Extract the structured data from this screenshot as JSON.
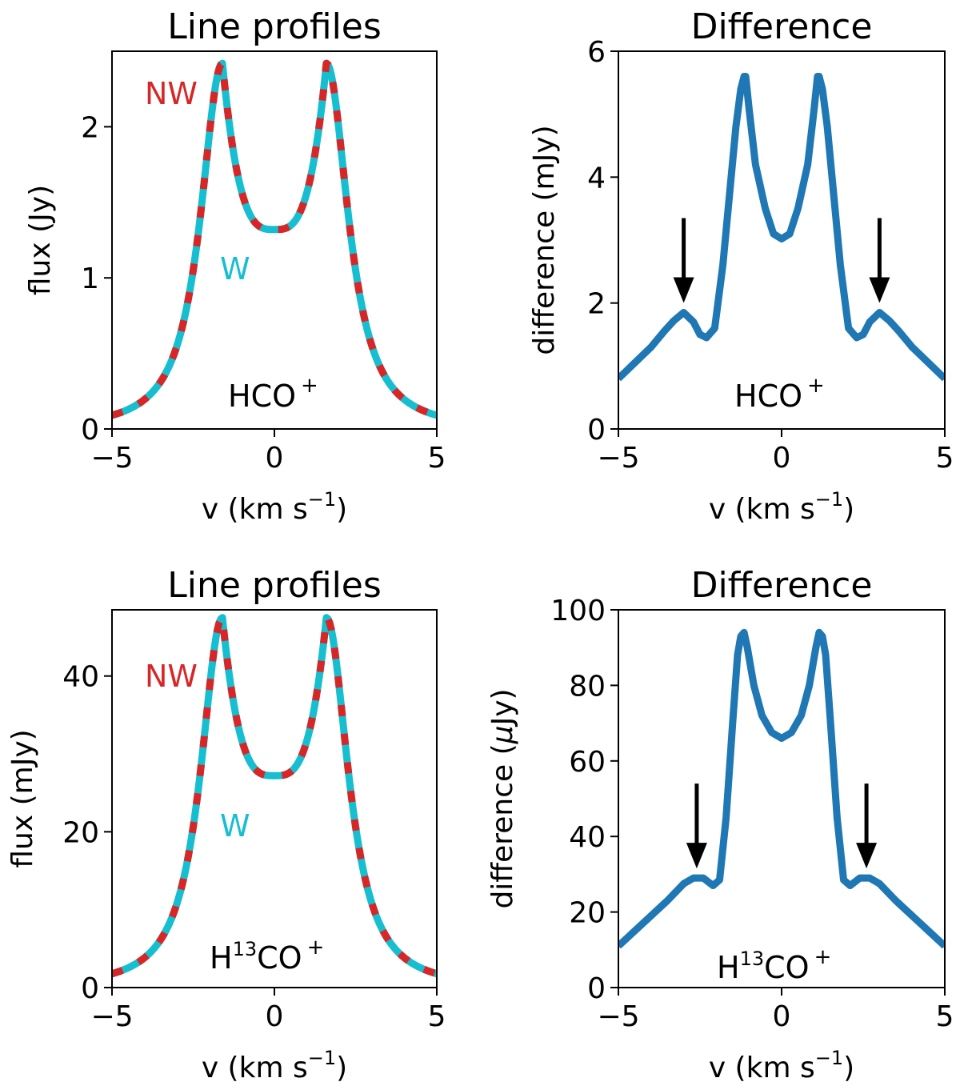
{
  "chart_data": [
    {
      "id": "p1",
      "type": "line",
      "title": "Line profiles",
      "xlabel": "v (km s",
      "xlabel_exp": "−1",
      "xlabel_tail": ")",
      "ylabel": "flux (Jy)",
      "xlim": [
        -5,
        5
      ],
      "ylim": [
        0,
        2.5
      ],
      "xticks": [
        -5,
        0,
        5
      ],
      "xtick_labels": [
        "−5",
        "0",
        "5"
      ],
      "yticks": [
        0,
        1,
        2
      ],
      "ytick_labels": [
        "0",
        "1",
        "2"
      ],
      "species": {
        "base": "HCO",
        "pre": "",
        "sup": "",
        "charge": "+"
      },
      "labels": {
        "nw": "NW",
        "w": "W"
      },
      "series": [
        {
          "name": "NW",
          "color": "#d62728",
          "style": "dashed",
          "peak": 2.42,
          "center": 1.32,
          "shape": "profile"
        },
        {
          "name": "W",
          "color": "#17becf",
          "style": "solid",
          "peak": 2.42,
          "center": 1.32,
          "shape": "profile"
        }
      ]
    },
    {
      "id": "p2",
      "type": "line",
      "title": "Difference",
      "xlabel": "v (km s",
      "xlabel_exp": "−1",
      "xlabel_tail": ")",
      "ylabel": "difference (mJy)",
      "ylabel_mu": false,
      "xlim": [
        -5,
        5
      ],
      "ylim": [
        0,
        6
      ],
      "xticks": [
        -5,
        0,
        5
      ],
      "xtick_labels": [
        "−5",
        "0",
        "5"
      ],
      "yticks": [
        0,
        2,
        4,
        6
      ],
      "ytick_labels": [
        "0",
        "2",
        "4",
        "6"
      ],
      "species": {
        "base": "HCO",
        "pre": "",
        "sup": "",
        "charge": "+"
      },
      "arrows_at_v": [
        -3.0,
        3.0
      ],
      "series": [
        {
          "name": "difference",
          "color": "#1f77b4",
          "style": "solid",
          "x": [
            -5,
            -4.5,
            -4,
            -3.6,
            -3.3,
            -3.0,
            -2.7,
            -2.5,
            -2.3,
            -2.05,
            -1.8,
            -1.6,
            -1.4,
            -1.25,
            -1.15,
            -1.1,
            -1.0,
            -0.8,
            -0.5,
            -0.25,
            0,
            0.25,
            0.5,
            0.8,
            1.0,
            1.1,
            1.15,
            1.25,
            1.4,
            1.6,
            1.8,
            2.05,
            2.3,
            2.5,
            2.7,
            3.0,
            3.3,
            3.6,
            4,
            4.5,
            5
          ],
          "y": [
            0.8,
            1.05,
            1.3,
            1.55,
            1.72,
            1.85,
            1.7,
            1.5,
            1.45,
            1.6,
            2.6,
            3.7,
            4.8,
            5.4,
            5.6,
            5.6,
            5.1,
            4.2,
            3.5,
            3.1,
            3.02,
            3.1,
            3.5,
            4.2,
            5.1,
            5.6,
            5.6,
            5.4,
            4.8,
            3.7,
            2.6,
            1.6,
            1.45,
            1.5,
            1.7,
            1.85,
            1.72,
            1.55,
            1.3,
            1.05,
            0.8
          ]
        }
      ]
    },
    {
      "id": "p3",
      "type": "line",
      "title": "Line profiles",
      "xlabel": "v (km s",
      "xlabel_exp": "−1",
      "xlabel_tail": ")",
      "ylabel": "flux (mJy)",
      "xlim": [
        -5,
        5
      ],
      "ylim": [
        0,
        48.5
      ],
      "xticks": [
        -5,
        0,
        5
      ],
      "xtick_labels": [
        "−5",
        "0",
        "5"
      ],
      "yticks": [
        0,
        20,
        40
      ],
      "ytick_labels": [
        "0",
        "20",
        "40"
      ],
      "species": {
        "base": "CO",
        "pre": "H",
        "sup": "13",
        "charge": "+"
      },
      "labels": {
        "nw": "NW",
        "w": "W"
      },
      "series": [
        {
          "name": "NW",
          "color": "#d62728",
          "style": "dashed",
          "peak": 47.5,
          "center": 27.2,
          "shape": "profile"
        },
        {
          "name": "W",
          "color": "#17becf",
          "style": "solid",
          "peak": 47.5,
          "center": 27.2,
          "shape": "profile"
        }
      ]
    },
    {
      "id": "p4",
      "type": "line",
      "title": "Difference",
      "xlabel": "v (km s",
      "xlabel_exp": "−1",
      "xlabel_tail": ")",
      "ylabel": "difference (",
      "ylabel_mu": true,
      "ylabel_tail": "Jy)",
      "xlim": [
        -5,
        5
      ],
      "ylim": [
        0,
        100
      ],
      "xticks": [
        -5,
        0,
        5
      ],
      "xtick_labels": [
        "−5",
        "0",
        "5"
      ],
      "yticks": [
        0,
        20,
        40,
        60,
        80,
        100
      ],
      "ytick_labels": [
        "0",
        "20",
        "40",
        "60",
        "80",
        "100"
      ],
      "species": {
        "base": "CO",
        "pre": "H",
        "sup": "13",
        "charge": "+"
      },
      "arrows_at_v": [
        -2.6,
        2.6
      ],
      "series": [
        {
          "name": "difference",
          "color": "#1f77b4",
          "style": "solid",
          "x": [
            -5,
            -4.5,
            -4,
            -3.5,
            -3.0,
            -2.7,
            -2.4,
            -2.1,
            -1.9,
            -1.7,
            -1.5,
            -1.35,
            -1.25,
            -1.15,
            -1.05,
            -0.85,
            -0.6,
            -0.3,
            0,
            0.3,
            0.6,
            0.85,
            1.05,
            1.15,
            1.25,
            1.35,
            1.5,
            1.7,
            1.9,
            2.1,
            2.4,
            2.7,
            3.0,
            3.5,
            4,
            4.5,
            5
          ],
          "y": [
            11,
            15,
            19,
            23,
            27.5,
            29,
            29,
            27,
            28.5,
            45,
            70,
            88,
            93,
            94,
            90,
            80,
            72,
            67.5,
            66,
            67.5,
            72,
            80,
            90,
            94,
            93,
            88,
            70,
            45,
            28.5,
            27,
            29,
            29,
            27.5,
            23,
            19,
            15,
            11
          ]
        }
      ]
    }
  ]
}
